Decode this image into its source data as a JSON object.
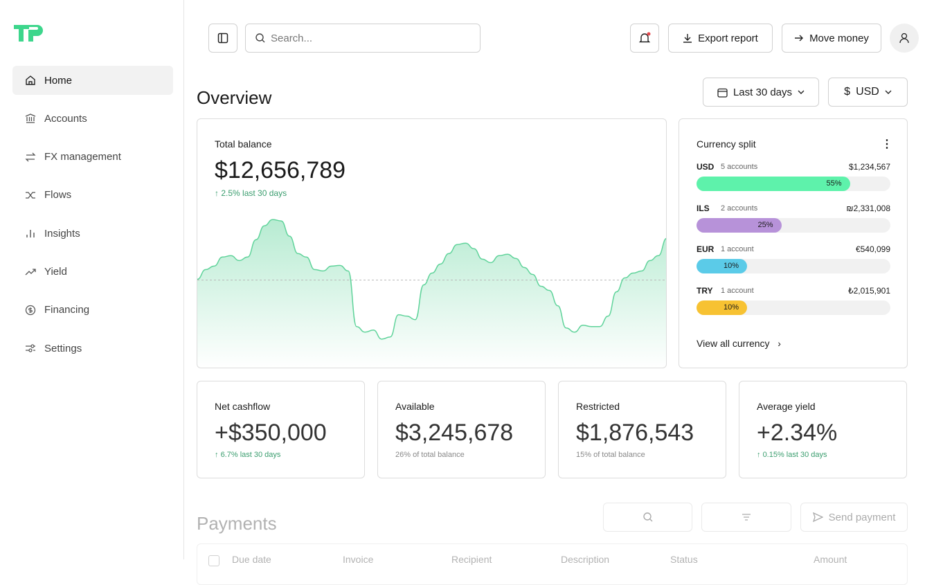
{
  "sidebar": {
    "nav": [
      "Home",
      "Accounts",
      "FX management",
      "Flows",
      "Insights",
      "Yield",
      "Financing",
      "Settings"
    ]
  },
  "topbar": {
    "search_placeholder": "Search...",
    "export": "Export report",
    "move": "Move money"
  },
  "overview": {
    "title": "Overview",
    "date_range": "Last 30 days",
    "currency": "USD"
  },
  "total_balance": {
    "label": "Total balance",
    "value": "$12,656,789",
    "change": "2.5% last 30 days",
    "chart": {
      "type": "area",
      "color": "#5fd39a",
      "ylim": [
        0,
        230
      ],
      "reference_line": 127,
      "values": [
        128,
        142,
        147,
        160,
        162,
        155,
        160,
        185,
        205,
        214,
        212,
        190,
        165,
        160,
        142,
        140,
        147,
        148,
        140,
        60,
        52,
        55,
        42,
        45,
        77,
        75,
        70,
        120,
        137,
        150,
        165,
        178,
        180,
        172,
        157,
        152,
        162,
        164,
        158,
        145,
        135,
        118,
        112,
        90,
        58,
        52,
        62,
        60,
        60,
        75,
        110,
        130,
        137,
        140,
        155,
        162,
        187
      ]
    }
  },
  "currency_split": {
    "title": "Currency split",
    "link": "View all currency",
    "items": [
      {
        "code": "USD",
        "accounts": "5 accounts",
        "amount": "$1,234,567",
        "share": 55,
        "share_label": "55%",
        "color": "#5ef2ab"
      },
      {
        "code": "ILS",
        "accounts": "2 accounts",
        "amount": "₪2,331,008",
        "share": 25,
        "share_label": "25%",
        "color": "#b792d9"
      },
      {
        "code": "EUR",
        "accounts": "1 account",
        "amount": "€540,099",
        "share": 10,
        "share_label": "10%",
        "color": "#5bcbe8"
      },
      {
        "code": "TRY",
        "accounts": "1 account",
        "amount": "₺2,015,901",
        "share": 10,
        "share_label": "10%",
        "color": "#f7c232"
      }
    ]
  },
  "metrics": [
    {
      "label": "Net cashflow",
      "value": "+$350,000",
      "note": "6.7% last 30 days"
    },
    {
      "label": "Available",
      "value": "$3,245,678",
      "note": "26% of total balance"
    },
    {
      "label": "Restricted",
      "value": "$1,876,543",
      "note": "15% of total balance"
    },
    {
      "label": "Average yield",
      "value": "+2.34%",
      "note": "0.15% last 30 days"
    }
  ],
  "payments": {
    "title": "Payments",
    "send": "Send payment",
    "columns": [
      "Due date",
      "Invoice",
      "Recipient",
      "Description",
      "Status",
      "Amount"
    ]
  }
}
